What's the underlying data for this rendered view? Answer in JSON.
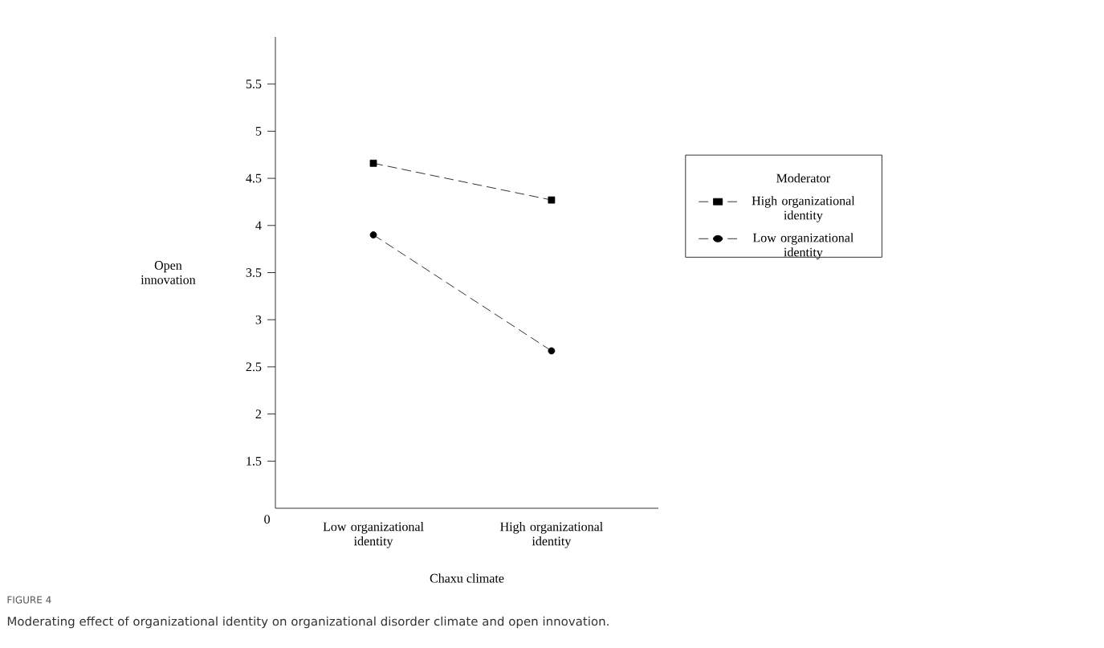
{
  "chart_data": {
    "type": "line",
    "categories": [
      "Low organizational identity",
      "High organizational identity"
    ],
    "series": [
      {
        "name": "High organizational identity",
        "color": "#000000",
        "marker": "square",
        "values": [
          4.66,
          4.27
        ]
      },
      {
        "name": "Low organizational identity",
        "color": "#000000",
        "marker": "circle",
        "values": [
          3.9,
          2.67
        ]
      }
    ],
    "xlabel": "Chaxu climate",
    "ylabel": "Open innovation",
    "legend_title": "Moderator",
    "ylim": [
      1,
      6
    ],
    "yticks": [
      1.5,
      2,
      2.5,
      3,
      3.5,
      4,
      4.5,
      5,
      5.5
    ],
    "line_style": "dashed",
    "legend": "right",
    "grid": false,
    "annotations": [
      "0",
      "FIGURE 4",
      "Moderating effect of organizational identity on organizational disorder climate and open innovation."
    ]
  }
}
